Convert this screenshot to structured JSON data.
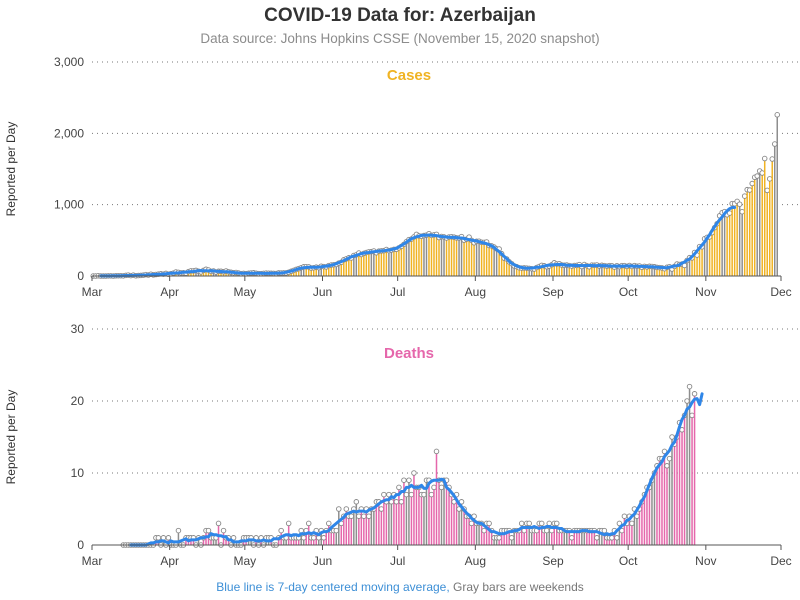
{
  "title": "COVID-19 Data for: Azerbaijan",
  "subtitle": "Data source: Johns Hopkins CSSE (November 15, 2020 snapshot)",
  "footer": {
    "blue_text": "Blue line is 7-day centered moving average,",
    "gray_text": "Gray bars are weekends"
  },
  "colors": {
    "cases": "#f0b323",
    "deaths": "#e567ab",
    "weekend": "#8e8e8e",
    "moving_average": "#2f86e8",
    "marker": "#888888"
  },
  "chart_data": [
    {
      "type": "bar",
      "title": "Cases",
      "ylabel": "Reported per Day",
      "xlabel": "",
      "ylim": [
        0,
        3000
      ],
      "yticks": [
        0,
        1000,
        2000,
        3000
      ],
      "ytick_labels": [
        "0",
        "1,000",
        "2,000",
        "3,000"
      ],
      "xlim": [
        "2020-03-01",
        "2020-12-01"
      ],
      "xticks": [
        "Mar",
        "Apr",
        "May",
        "Jun",
        "Jul",
        "Aug",
        "Sep",
        "Oct",
        "Nov",
        "Dec"
      ],
      "grid": "horizontal dotted",
      "series_start": "2020-03-01",
      "values": [
        0,
        0,
        3,
        0,
        0,
        0,
        2,
        2,
        0,
        3,
        4,
        4,
        2,
        8,
        13,
        6,
        12,
        3,
        7,
        8,
        12,
        19,
        14,
        25,
        15,
        21,
        26,
        31,
        27,
        36,
        24,
        33,
        40,
        56,
        51,
        44,
        45,
        40,
        61,
        72,
        71,
        78,
        67,
        57,
        78,
        94,
        84,
        65,
        70,
        55,
        66,
        66,
        59,
        70,
        58,
        52,
        46,
        49,
        42,
        33,
        37,
        33,
        38,
        42,
        45,
        39,
        33,
        34,
        37,
        40,
        39,
        38,
        37,
        35,
        43,
        42,
        44,
        43,
        53,
        66,
        79,
        92,
        103,
        116,
        129,
        130,
        128,
        112,
        116,
        124,
        117,
        137,
        132,
        128,
        146,
        154,
        158,
        162,
        181,
        192,
        227,
        240,
        255,
        253,
        288,
        297,
        322,
        301,
        317,
        330,
        339,
        341,
        351,
        326,
        348,
        352,
        355,
        371,
        356,
        363,
        373,
        375,
        395,
        416,
        444,
        481,
        510,
        518,
        548,
        584,
        562,
        557,
        567,
        573,
        593,
        570,
        576,
        584,
        539,
        554,
        548,
        533,
        547,
        551,
        545,
        534,
        533,
        552,
        503,
        516,
        545,
        500,
        466,
        487,
        488,
        473,
        472,
        477,
        428,
        422,
        406,
        381,
        379,
        313,
        250,
        239,
        199,
        172,
        142,
        131,
        116,
        111,
        114,
        111,
        107,
        101,
        98,
        120,
        133,
        149,
        143,
        129,
        139,
        157,
        185,
        169,
        172,
        154,
        150,
        155,
        146,
        139,
        147,
        149,
        160,
        133,
        161,
        145,
        129,
        153,
        150,
        155,
        140,
        150,
        145,
        139,
        145,
        144,
        125,
        144,
        131,
        146,
        145,
        135,
        148,
        134,
        146,
        137,
        141,
        122,
        135,
        128,
        136,
        134,
        129,
        121,
        118,
        114,
        102,
        122,
        130,
        98,
        135,
        169,
        162,
        168,
        148,
        218,
        257,
        254,
        330,
        293,
        412,
        409,
        522,
        541,
        549,
        608,
        678,
        733,
        844,
        888,
        902,
        858,
        882,
        1015,
        1013,
        1046,
        1006,
        901,
        1120,
        1210,
        1205,
        1296,
        1384,
        1401,
        1472,
        1444,
        1647,
        1200,
        1362,
        1640,
        1850,
        2260
      ],
      "moving_average_start": "2020-03-04",
      "moving_average_end": "2020-11-12",
      "legend": "none"
    },
    {
      "type": "bar",
      "title": "Deaths",
      "ylabel": "Reported per Day",
      "xlabel": "",
      "ylim": [
        0,
        30
      ],
      "yticks": [
        0,
        10,
        20,
        30
      ],
      "ytick_labels": [
        "0",
        "10",
        "20",
        "30"
      ],
      "xlim": [
        "2020-03-01",
        "2020-12-01"
      ],
      "xticks": [
        "Mar",
        "Apr",
        "May",
        "Jun",
        "Jul",
        "Aug",
        "Sep",
        "Oct",
        "Nov",
        "Dec"
      ],
      "grid": "horizontal dotted",
      "series_start": "2020-03-13",
      "values": [
        0,
        0,
        0,
        0,
        0,
        0,
        0,
        0,
        0,
        0,
        0,
        0,
        0,
        1,
        1,
        0,
        1,
        0,
        1,
        0,
        0,
        0,
        2,
        0,
        0,
        1,
        1,
        1,
        1,
        0,
        1,
        0,
        1,
        2,
        2,
        1,
        1,
        1,
        3,
        0,
        2,
        1,
        1,
        0,
        1,
        0,
        0,
        0,
        1,
        1,
        1,
        1,
        0,
        1,
        0,
        1,
        0,
        1,
        1,
        1,
        0,
        0,
        1,
        2,
        1,
        1,
        3,
        1,
        1,
        1,
        1,
        2,
        1,
        2,
        3,
        1,
        1,
        2,
        1,
        2,
        1,
        2,
        3,
        2,
        2,
        2,
        5,
        3,
        4,
        5,
        4,
        4,
        5,
        6,
        4,
        5,
        4,
        5,
        4,
        5,
        5,
        6,
        6,
        5,
        7,
        6,
        7,
        6,
        7,
        6,
        8,
        6,
        9,
        7,
        9,
        7,
        10,
        8,
        8,
        7,
        7,
        9,
        9,
        7,
        8,
        13,
        9,
        8,
        9,
        9,
        8,
        7,
        6,
        7,
        5,
        6,
        5,
        4,
        4,
        3,
        4,
        3,
        3,
        3,
        2,
        3,
        3,
        2,
        1,
        1,
        1,
        2,
        2,
        2,
        2,
        1,
        2,
        2,
        2,
        3,
        2,
        3,
        3,
        2,
        2,
        2,
        3,
        3,
        2,
        2,
        3,
        2,
        3,
        3,
        2,
        2,
        2,
        2,
        2,
        1,
        2,
        2,
        2,
        2,
        2,
        2,
        2,
        2,
        2,
        1,
        2,
        2,
        2,
        1,
        1,
        1,
        2,
        1,
        3,
        2,
        4,
        3,
        4,
        3,
        5,
        4,
        5,
        6,
        7,
        8,
        8,
        9,
        10,
        11,
        12,
        12,
        13,
        11,
        12,
        15,
        14,
        15,
        17,
        16,
        18,
        20,
        22,
        18,
        21
      ],
      "moving_average_start": "2020-03-16",
      "moving_average_end": "2020-11-12",
      "legend": "none"
    }
  ]
}
